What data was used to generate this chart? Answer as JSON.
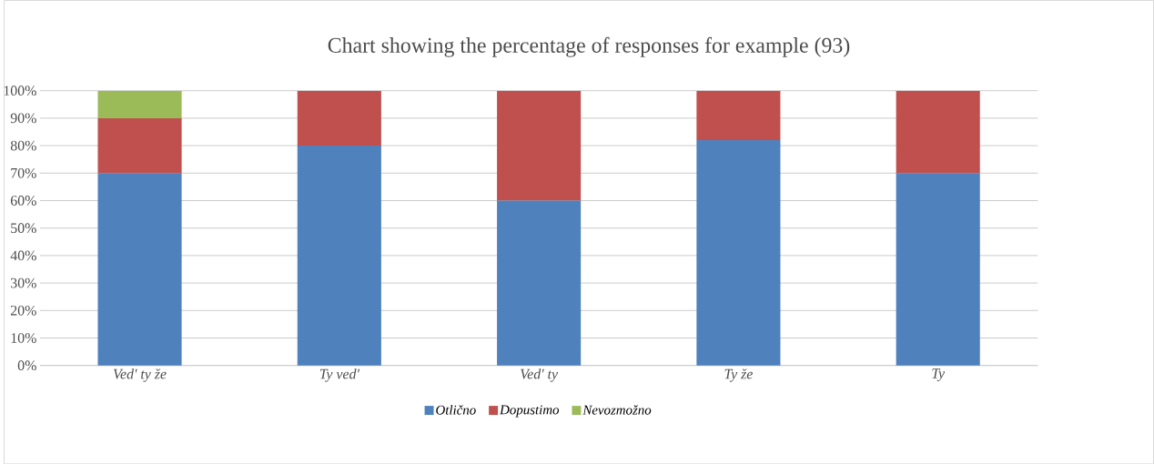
{
  "chart_data": {
    "type": "bar",
    "title": "Chart showing the percentage of responses for example (93)",
    "stacked": true,
    "categories": [
      "Ved' ty že",
      "Ty ved'",
      "Ved' ty",
      "Ty že",
      "Ty"
    ],
    "series": [
      {
        "name": "Otlično",
        "color": "#4f81bd",
        "values": [
          70,
          80,
          60,
          82,
          70
        ]
      },
      {
        "name": "Dopustimo",
        "color": "#c0504d",
        "values": [
          20,
          20,
          40,
          18,
          30
        ]
      },
      {
        "name": "Nevozmožno",
        "color": "#9bbb59",
        "values": [
          10,
          0,
          0,
          0,
          0
        ]
      }
    ],
    "ylim": [
      0,
      100
    ],
    "yticks": [
      {
        "value": 0,
        "label": "0%"
      },
      {
        "value": 10,
        "label": "10%"
      },
      {
        "value": 20,
        "label": "20%"
      },
      {
        "value": 30,
        "label": "30%"
      },
      {
        "value": 40,
        "label": "40%"
      },
      {
        "value": 50,
        "label": "50%"
      },
      {
        "value": 60,
        "label": "60%"
      },
      {
        "value": 70,
        "label": "70%"
      },
      {
        "value": 80,
        "label": "80%"
      },
      {
        "value": 90,
        "label": "90%"
      },
      {
        "value": 100,
        "label": "100%"
      }
    ],
    "grid": "y",
    "legend": "bottom"
  }
}
